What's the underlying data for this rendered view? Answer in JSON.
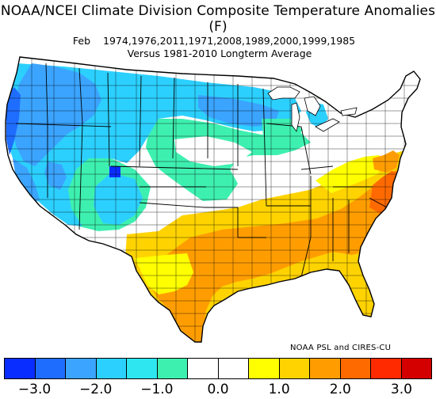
{
  "title": "NOAA/NCEI Climate Division Composite Temperature Anomalies (F)",
  "subtitle_month": "Feb",
  "subtitle_years": "1974,1976,2011,1971,2008,1989,2000,1999,1985",
  "subtitle_base": "Versus 1981-2010 Longterm Average",
  "credit": "NOAA PSL and CIRES-CU",
  "legend": {
    "colors": [
      "#0a2dff",
      "#1f6dff",
      "#3ba4ff",
      "#2cd0ff",
      "#2ee6f0",
      "#3ef0b0",
      "#ffffff",
      "#ffffff",
      "#ffff00",
      "#ffd300",
      "#ff9d00",
      "#ff6a00",
      "#ff2a00",
      "#d40000"
    ],
    "labels": [
      "-3.0",
      "-2.0",
      "-1.0",
      "0.0",
      "1.0",
      "2.0",
      "3.0"
    ]
  },
  "map_colors": {
    "deep_blue": "#0a2dff",
    "blue": "#1f6dff",
    "sky": "#3ba4ff",
    "cyan": "#2cd0ff",
    "aqua": "#2ee6f0",
    "teal": "#3ef0b0",
    "white": "#ffffff",
    "yellow": "#ffff00",
    "gold": "#ffd300",
    "orange": "#ff9d00",
    "dark_orange": "#ff6a00"
  }
}
